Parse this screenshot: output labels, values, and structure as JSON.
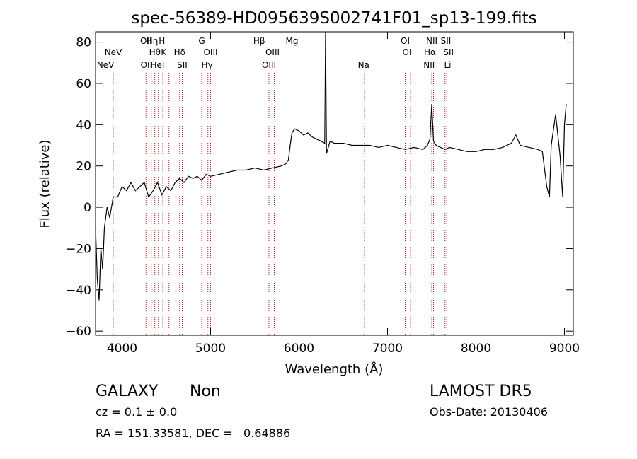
{
  "chart_data": {
    "type": "line",
    "title": "spec-56389-HD095639S002741F01_sp13-199.fits",
    "xlabel": "Wavelength (Å)",
    "ylabel": "Flux (relative)",
    "xlim": [
      3700,
      9100
    ],
    "ylim": [
      -62,
      85
    ],
    "x_ticks": [
      4000,
      5000,
      6000,
      7000,
      8000,
      9000
    ],
    "y_ticks": [
      -60,
      -40,
      -20,
      0,
      20,
      40,
      60,
      80
    ],
    "line_color": "#000000",
    "marker_color": "#b22222",
    "series": [
      {
        "x": [
          3700,
          3720,
          3740,
          3760,
          3780,
          3800,
          3830,
          3860,
          3900,
          3950,
          4000,
          4050,
          4100,
          4150,
          4200,
          4250,
          4300,
          4350,
          4400,
          4450,
          4500,
          4550,
          4600,
          4650,
          4700,
          4750,
          4800,
          4850,
          4900,
          4950,
          5000,
          5100,
          5200,
          5300,
          5400,
          5500,
          5600,
          5700,
          5800,
          5850,
          5880,
          5900,
          5920,
          5950,
          6000,
          6050,
          6100,
          6150,
          6200,
          6250,
          6290,
          6300,
          6310,
          6350,
          6400,
          6500,
          6600,
          6700,
          6800,
          6900,
          7000,
          7100,
          7200,
          7300,
          7400,
          7450,
          7480,
          7500,
          7520,
          7550,
          7600,
          7650,
          7700,
          7800,
          7900,
          8000,
          8100,
          8200,
          8300,
          8400,
          8450,
          8500,
          8600,
          8700,
          8750,
          8800,
          8830,
          8850,
          8900,
          8950,
          8980,
          9000,
          9020
        ],
        "values": [
          -10,
          -35,
          -45,
          -20,
          -30,
          -10,
          0,
          -5,
          5,
          5,
          10,
          8,
          12,
          8,
          10,
          12,
          5,
          8,
          12,
          6,
          10,
          8,
          12,
          14,
          12,
          15,
          14,
          15,
          13,
          16,
          15,
          16,
          17,
          18,
          18,
          19,
          18,
          19,
          20,
          21,
          23,
          30,
          36,
          38,
          37,
          35,
          36,
          34,
          33,
          32,
          31,
          85,
          26,
          32,
          31,
          31,
          30,
          30,
          30,
          29,
          30,
          29,
          28,
          29,
          28,
          30,
          33,
          50,
          32,
          30,
          29,
          28,
          29,
          28,
          27,
          27,
          28,
          28,
          29,
          31,
          35,
          30,
          29,
          28,
          27,
          10,
          5,
          30,
          45,
          25,
          5,
          40,
          50
        ]
      }
    ],
    "line_markers": [
      {
        "label": "NeV",
        "x": 3426,
        "row": 3
      },
      {
        "label": "NeV",
        "x": 3900,
        "row": 2
      },
      {
        "label": "OII",
        "x": 4270,
        "row": 1
      },
      {
        "label": "OII",
        "x": 4275,
        "row": 3
      },
      {
        "label": "Hη",
        "x": 4340,
        "row": 1
      },
      {
        "label": "Hθ",
        "x": 4370,
        "row": 2
      },
      {
        "label": "H",
        "x": 4450,
        "row": 1
      },
      {
        "label": "HeI",
        "x": 4400,
        "row": 3
      },
      {
        "label": "K",
        "x": 4470,
        "row": 2
      },
      {
        "label": "Hδ",
        "x": 4650,
        "row": 2
      },
      {
        "label": "SII",
        "x": 4680,
        "row": 3
      },
      {
        "label": "G",
        "x": 4900,
        "row": 1
      },
      {
        "label": "OIII",
        "x": 5000,
        "row": 2
      },
      {
        "label": "Hγ",
        "x": 4960,
        "row": 3
      },
      {
        "label": "Hβ",
        "x": 5550,
        "row": 1
      },
      {
        "label": "OIII",
        "x": 5700,
        "row": 2
      },
      {
        "label": "OIII",
        "x": 5660,
        "row": 3
      },
      {
        "label": "Mg",
        "x": 5920,
        "row": 1
      },
      {
        "label": "Na",
        "x": 6730,
        "row": 3
      },
      {
        "label": "OI",
        "x": 7200,
        "row": 1
      },
      {
        "label": "OI",
        "x": 7220,
        "row": 2
      },
      {
        "label": "NII",
        "x": 7500,
        "row": 1
      },
      {
        "label": "Hα",
        "x": 7480,
        "row": 2
      },
      {
        "label": "NII",
        "x": 7470,
        "row": 3
      },
      {
        "label": "SII",
        "x": 7660,
        "row": 1
      },
      {
        "label": "SII",
        "x": 7690,
        "row": 2
      },
      {
        "label": "Li",
        "x": 7680,
        "row": 3
      }
    ],
    "marker_lines_x": [
      3900,
      4270,
      4280,
      4330,
      4370,
      4410,
      4460,
      4530,
      4650,
      4680,
      4900,
      4970,
      5000,
      5560,
      5660,
      5720,
      5920,
      6740,
      7200,
      7260,
      7480,
      7500,
      7520,
      7650,
      7670
    ]
  },
  "info": {
    "class": "GALAXY",
    "subclass": "Non",
    "cz": "cz = 0.1 ± 0.0",
    "radec": "RA = 151.33581, DEC =   0.64886",
    "survey": "LAMOST DR5",
    "obsdate": "Obs-Date: 20130406"
  }
}
